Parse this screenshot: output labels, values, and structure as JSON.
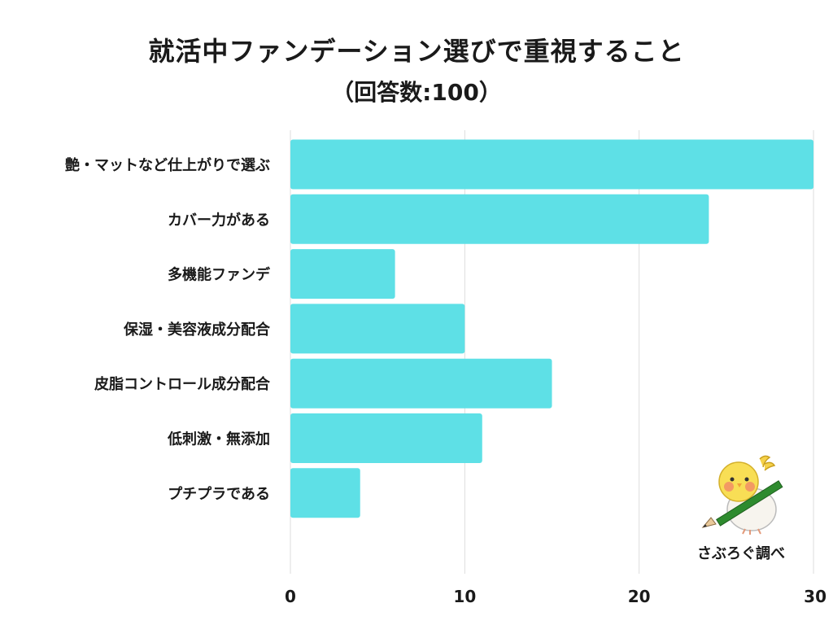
{
  "header": {
    "title": "就活中ファンデーション選びで重視すること",
    "subtitle": "（回答数:100）"
  },
  "chart_data": {
    "type": "bar",
    "orientation": "horizontal",
    "categories": [
      "艶・マットなど仕上がりで選ぶ",
      "カバー力がある",
      "多機能ファンデ",
      "保湿・美容液成分配合",
      "皮脂コントロール成分配合",
      "低刺激・無添加",
      "プチプラである"
    ],
    "values": [
      30,
      24,
      6,
      10,
      15,
      11,
      4
    ],
    "xlim": [
      0,
      30
    ],
    "xticks": [
      0,
      10,
      20,
      30
    ],
    "grid": true,
    "bar_color": "#5ee0e6",
    "title": "就活中ファンデーション選びで重視すること"
  },
  "badge": {
    "text": "さぶろぐ調べ",
    "icon": "cockatiel-bird-icon"
  },
  "colors": {
    "bar": "#5ee0e6",
    "grid": "#dddddd",
    "text": "#1a1a1a"
  }
}
